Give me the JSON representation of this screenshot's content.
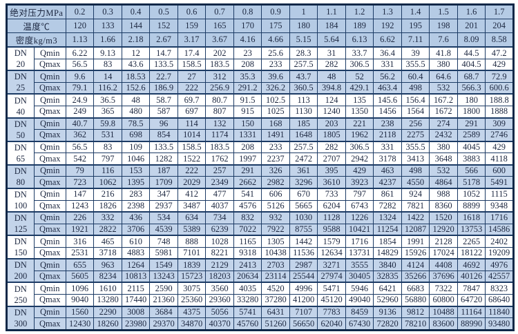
{
  "colors": {
    "header_fill": "#b5cbe5",
    "band_fill": "#c3d4ea",
    "white_fill": "#ffffff",
    "grid": "#1b3a64",
    "outer_border": "#0e2747",
    "text": "#1c2740"
  },
  "table": {
    "dn_prefix": "DN",
    "qmin_label": "Qmin",
    "qmax_label": "Qmax",
    "header_rows": [
      {
        "label": "绝对压力MPa",
        "values": [
          "0.2",
          "0.3",
          "0.4",
          "0.5",
          "0.6",
          "0.7",
          "0.8",
          "0.9",
          "1",
          "1.1",
          "1.2",
          "1.3",
          "1.4",
          "1.5",
          "1.6",
          "1.7"
        ]
      },
      {
        "label": "温度℃",
        "values": [
          "120",
          "133",
          "144",
          "152",
          "159",
          "165",
          "170",
          "175",
          "180",
          "184",
          "189",
          "192",
          "195",
          "198",
          "201",
          "204"
        ]
      },
      {
        "label": "密度kg/m3",
        "values": [
          "1.13",
          "1.66",
          "2.18",
          "2.67",
          "3.17",
          "3.67",
          "4.16",
          "4.66",
          "5.15",
          "5.64",
          "6.13",
          "6.62",
          "7.11",
          "7.6",
          "8.09",
          "8.58"
        ]
      }
    ],
    "groups": [
      {
        "dn": "20",
        "qmin": [
          "6.22",
          "9.13",
          "12",
          "14.7",
          "17.4",
          "202",
          "23",
          "25.6",
          "28.3",
          "31",
          "33.7",
          "36.4",
          "39",
          "41.8",
          "44.5",
          "47.2"
        ],
        "qmax": [
          "56.5",
          "83",
          "43.6",
          "133.5",
          "158.5",
          "183.5",
          "208",
          "233",
          "257.5",
          "282",
          "306.5",
          "331",
          "355.5",
          "380",
          "404.5",
          "429"
        ]
      },
      {
        "dn": "25",
        "qmin": [
          "9.6",
          "14",
          "18.53",
          "22.7",
          "27",
          "312",
          "35.3",
          "39.6",
          "43.7",
          "48",
          "52",
          "56.2",
          "60.4",
          "64.6",
          "68.7",
          "72.9"
        ],
        "qmax": [
          "79.1",
          "116.2",
          "152.6",
          "186.9",
          "222",
          "256.9",
          "291.2",
          "326.2",
          "360.5",
          "394.8",
          "429.1",
          "463.4",
          "498",
          "532",
          "566.3",
          "600.6"
        ]
      },
      {
        "dn": "40",
        "qmin": [
          "24.9",
          "36.5",
          "48",
          "58.7",
          "69.7",
          "80.7",
          "91.5",
          "102.5",
          "113",
          "124",
          "135",
          "145.6",
          "156.4",
          "167.2",
          "180",
          "188.8"
        ],
        "qmax": [
          "249",
          "365",
          "480",
          "587",
          "697",
          "807",
          "915",
          "1025",
          "1130",
          "1240",
          "1350",
          "1456",
          "1564",
          "1672",
          "1800",
          "1888"
        ]
      },
      {
        "dn": "50",
        "qmin": [
          "40.7",
          "59.8",
          "78.5",
          "96",
          "114",
          "132",
          "150",
          "168",
          "185",
          "203",
          "221",
          "238",
          "256",
          "274",
          "291",
          "309"
        ],
        "qmax": [
          "362",
          "531",
          "698",
          "854",
          "1014",
          "1174",
          "1331",
          "1491",
          "1648",
          "1805",
          "1962",
          "2118",
          "2275",
          "2432",
          "2589",
          "2746"
        ]
      },
      {
        "dn": "65",
        "qmin": [
          "56.5",
          "83",
          "109",
          "133.5",
          "158.5",
          "183.5",
          "208",
          "233",
          "257.5",
          "282",
          "306.5",
          "331",
          "355.5",
          "380",
          "4045",
          "429"
        ],
        "qmax": [
          "542",
          "797",
          "1046",
          "1282",
          "1522",
          "1762",
          "1997",
          "2237",
          "2472",
          "2707",
          "2942",
          "3178",
          "3413",
          "3648",
          "3883",
          "4118"
        ]
      },
      {
        "dn": "80",
        "qmin": [
          "79",
          "116",
          "153",
          "187",
          "222",
          "257",
          "291",
          "326",
          "361",
          "395",
          "429",
          "463",
          "498",
          "532",
          "566",
          "600"
        ],
        "qmax": [
          "723",
          "1062",
          "1395",
          "1709",
          "2029",
          "2349",
          "2662",
          "2982",
          "3296",
          "3610",
          "3923",
          "4237",
          "4550",
          "4864",
          "5178",
          "5491"
        ]
      },
      {
        "dn": "100",
        "qmin": [
          "147",
          "216",
          "283",
          "347",
          "412",
          "477",
          "541",
          "606",
          "670",
          "733",
          "797",
          "861",
          "924",
          "988",
          "1052",
          "1115"
        ],
        "qmax": [
          "1243",
          "1826",
          "2398",
          "2937",
          "3487",
          "4037",
          "4576",
          "5126",
          "5665",
          "6204",
          "6743",
          "7282",
          "7821",
          "8360",
          "8899",
          "9348"
        ]
      },
      {
        "dn": "125",
        "qmin": [
          "226",
          "332",
          "436",
          "534",
          "634",
          "734",
          "832",
          "932",
          "1030",
          "1128",
          "1226",
          "1324",
          "1422",
          "1520",
          "1618",
          "1716"
        ],
        "qmax": [
          "1921",
          "2822",
          "3706",
          "4539",
          "5389",
          "6239",
          "7022",
          "7922",
          "8755",
          "9588",
          "10421",
          "11254",
          "12087",
          "12920",
          "13753",
          "14586"
        ]
      },
      {
        "dn": "150",
        "qmin": [
          "316",
          "465",
          "610",
          "748",
          "888",
          "1028",
          "1165",
          "1305",
          "1442",
          "1579",
          "1716",
          "1854",
          "1991",
          "2128",
          "2265",
          "2402"
        ],
        "qmax": [
          "2531",
          "3718",
          "4883",
          "5981",
          "7101",
          "8221",
          "9318",
          "10438",
          "11536",
          "12634",
          "13731",
          "14829",
          "15926",
          "17024",
          "18122",
          "19209"
        ]
      },
      {
        "dn": "200",
        "qmin": [
          "655",
          "963",
          "1264",
          "1549",
          "1839",
          "2129",
          "2413",
          "2703",
          "2987",
          "3271",
          "3555",
          "3840",
          "4124",
          "4408",
          "4692",
          "4976"
        ],
        "qmax": [
          "5605",
          "8234",
          "10813",
          "13243",
          "15723",
          "18203",
          "20634",
          "23114",
          "25544",
          "27974",
          "30405",
          "32835",
          "35266",
          "37696",
          "40126",
          "42557"
        ]
      },
      {
        "dn": "250",
        "qmin": [
          "1096",
          "1610",
          "2115",
          "2590",
          "3075",
          "3560",
          "4035",
          "4520",
          "4996",
          "5471",
          "5946",
          "6421",
          "6683",
          "7322",
          "7847",
          "8323"
        ],
        "qmax": [
          "9040",
          "13280",
          "17440",
          "21360",
          "25360",
          "29360",
          "33280",
          "37280",
          "41200",
          "45120",
          "49040",
          "52960",
          "56880",
          "60800",
          "64720",
          "68640"
        ]
      },
      {
        "dn": "300",
        "qmin": [
          "1560",
          "2290",
          "3008",
          "3684",
          "4375",
          "5056",
          "5741",
          "6431",
          "7107",
          "7783",
          "8459",
          "9136",
          "9812",
          "10488",
          "11164",
          "11840"
        ],
        "qmax": [
          "12430",
          "18260",
          "23980",
          "29370",
          "34870",
          "40370",
          "45760",
          "51260",
          "56650",
          "62040",
          "67430",
          "72820",
          "78210",
          "83600",
          "88990",
          "93480"
        ]
      }
    ]
  }
}
